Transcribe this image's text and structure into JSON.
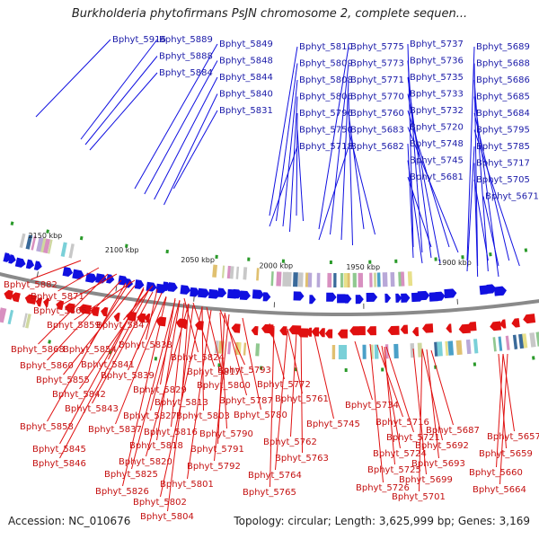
{
  "title": "Burkholderia phytofirmans PsJN chromosome 2, complete sequen...",
  "footer": {
    "accession": "Accession: NC_010676",
    "stats": "Topology: circular; Length: 3,625,999 bp; Genes: 3,169"
  },
  "scale_ticks": [
    "2150 kbp",
    "2100 kbp",
    "2050 kbp",
    "2000 kbp",
    "1950 kbp",
    "1900 kbp"
  ],
  "colors": {
    "top_labels": "#1a1aa8",
    "bottom_labels": "#c41010",
    "plus_strand": "#1010e0",
    "minus_strand": "#e01010",
    "backbone": "#8a8a8a"
  },
  "top_labels": [
    "Bphyt_5916",
    "Bphyt_5889",
    "Bphyt_5849",
    "Bphyt_5810",
    "Bphyt_5775",
    "Bphyt_5737",
    "Bphyt_5689",
    "Bphyt_5888",
    "Bphyt_5848",
    "Bphyt_5809",
    "Bphyt_5773",
    "Bphyt_5736",
    "Bphyt_5688",
    "Bphyt_5884",
    "Bphyt_5844",
    "Bphyt_5808",
    "Bphyt_5771",
    "Bphyt_5735",
    "Bphyt_5686",
    "Bphyt_5840",
    "Bphyt_5806",
    "Bphyt_5770",
    "Bphyt_5733",
    "Bphyt_5685",
    "Bphyt_5796",
    "Bphyt_5732",
    "Bphyt_5684",
    "Bphyt_5831",
    "Bphyt_5760",
    "Bphyt_5720",
    "Bphyt_5795",
    "Bphyt_5750",
    "Bphyt_5683",
    "Bphyt_5785",
    "Bphyt_5718",
    "Bphyt_5748",
    "Bphyt_5682",
    "Bphyt_5717",
    "Bphyt_5745",
    "Bphyt_5681",
    "Bphyt_5705",
    "Bphyt_5671"
  ],
  "bottom_labels": [
    "Bphyt_5882",
    "Bphyt_5871",
    "Bphyt_5865",
    "Bphyt_5859",
    "Bphyt_5847",
    "Bphyt_5868",
    "Bphyt_5854",
    "Bphyt_5838",
    "Bphyt_5860",
    "Bphyt_5841",
    "Bphyt_5824",
    "Bphyt_5855",
    "Bphyt_5839",
    "Bphyt_5817",
    "Bphyt_5793",
    "Bphyt_5842",
    "Bphyt_5829",
    "Bphyt_5800",
    "Bphyt_5772",
    "Bphyt_5813",
    "Bphyt_5787",
    "Bphyt_5761",
    "Bphyt_5843",
    "Bphyt_5827",
    "Bphyt_5803",
    "Bphyt_5780",
    "Bphyt_5858",
    "Bphyt_5837",
    "Bphyt_5816",
    "Bphyt_5790",
    "Bphyt_5745",
    "Bphyt_5734",
    "Bphyt_5716",
    "Bphyt_5687",
    "Bphyt_5721",
    "Bphyt_5657",
    "Bphyt_5762",
    "Bphyt_5845",
    "Bphyt_5818",
    "Bphyt_5791",
    "Bphyt_5692",
    "Bphyt_5763",
    "Bphyt_5724",
    "Bphyt_5659",
    "Bphyt_5846",
    "Bphyt_5820",
    "Bphyt_5792",
    "Bphyt_5693",
    "Bphyt_5825",
    "Bphyt_5764",
    "Bphyt_5725",
    "Bphyt_5660",
    "Bphyt_5801",
    "Bphyt_5699",
    "Bphyt_5826",
    "Bphyt_5765",
    "Bphyt_5726",
    "Bphyt_5664",
    "Bphyt_5802",
    "Bphyt_5701",
    "Bphyt_5804"
  ]
}
